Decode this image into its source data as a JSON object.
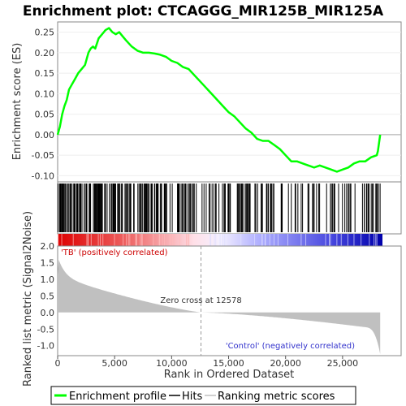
{
  "chart_data": {
    "type": "line",
    "title": "Enrichment plot: CTCAGGG_MIR125B_MIR125A",
    "xlabel": "Rank in Ordered Dataset",
    "ylabel_top": "Enrichment score (ES)",
    "ylabel_bottom": "Ranked list metric (Signal2Noise)",
    "x_ticks": [
      "0",
      "5,000",
      "10,000",
      "15,000",
      "20,000",
      "25,000"
    ],
    "x_tick_values": [
      0,
      5000,
      10000,
      15000,
      20000,
      25000
    ],
    "xlim": [
      0,
      28500
    ],
    "es_ticks": [
      "-0.10",
      "-0.05",
      "0.00",
      "0.05",
      "0.10",
      "0.15",
      "0.20",
      "0.25"
    ],
    "es_tick_values": [
      -0.1,
      -0.05,
      0.0,
      0.05,
      0.1,
      0.15,
      0.2,
      0.25
    ],
    "es_ylim": [
      -0.115,
      0.275
    ],
    "metric_ticks": [
      "-1.0",
      "-0.5",
      "0.0",
      "0.5",
      "1.0",
      "1.5",
      "2.0"
    ],
    "metric_tick_values": [
      -1.0,
      -0.5,
      0.0,
      0.5,
      1.0,
      1.5,
      2.0
    ],
    "metric_ylim": [
      -1.3,
      2.0
    ],
    "enrichment_profile": {
      "name": "Enrichment profile",
      "color": "#00ff00",
      "x": [
        0,
        200,
        400,
        600,
        800,
        1000,
        1200,
        1500,
        1800,
        2100,
        2400,
        2700,
        2900,
        3100,
        3300,
        3600,
        3900,
        4200,
        4500,
        4800,
        5100,
        5400,
        5700,
        6000,
        6500,
        7000,
        7500,
        8000,
        8500,
        9000,
        9500,
        10000,
        10500,
        11000,
        11500,
        12000,
        12500,
        13000,
        13500,
        14000,
        14500,
        15000,
        15500,
        16000,
        16500,
        17000,
        17500,
        18000,
        18500,
        19000,
        19500,
        20000,
        20500,
        21000,
        21500,
        22000,
        22500,
        23000,
        23500,
        24000,
        24500,
        25000,
        25500,
        26000,
        26500,
        27000,
        27500,
        28000,
        28100,
        28200,
        28300
      ],
      "y": [
        0.0,
        0.02,
        0.05,
        0.07,
        0.085,
        0.11,
        0.12,
        0.135,
        0.15,
        0.16,
        0.17,
        0.2,
        0.21,
        0.215,
        0.21,
        0.235,
        0.245,
        0.255,
        0.26,
        0.25,
        0.245,
        0.25,
        0.24,
        0.23,
        0.215,
        0.205,
        0.2,
        0.2,
        0.198,
        0.195,
        0.19,
        0.18,
        0.175,
        0.165,
        0.16,
        0.145,
        0.13,
        0.115,
        0.1,
        0.085,
        0.07,
        0.055,
        0.045,
        0.03,
        0.015,
        0.005,
        -0.01,
        -0.015,
        -0.015,
        -0.025,
        -0.035,
        -0.05,
        -0.065,
        -0.065,
        -0.07,
        -0.075,
        -0.08,
        -0.075,
        -0.08,
        -0.085,
        -0.09,
        -0.085,
        -0.08,
        -0.07,
        -0.065,
        -0.065,
        -0.055,
        -0.05,
        -0.04,
        -0.02,
        0.0
      ]
    },
    "zero_cross": {
      "label": "Zero cross at 12578",
      "x": 12578
    },
    "positive_label": "'TB' (positively correlated)",
    "negative_label": "'Control' (negatively correlated)",
    "legend": [
      {
        "label": "Enrichment profile",
        "color": "#00ff00"
      },
      {
        "label": "Hits",
        "color": "#000000"
      },
      {
        "label": "Ranking metric scores",
        "color": "#c0c0c0"
      }
    ]
  }
}
